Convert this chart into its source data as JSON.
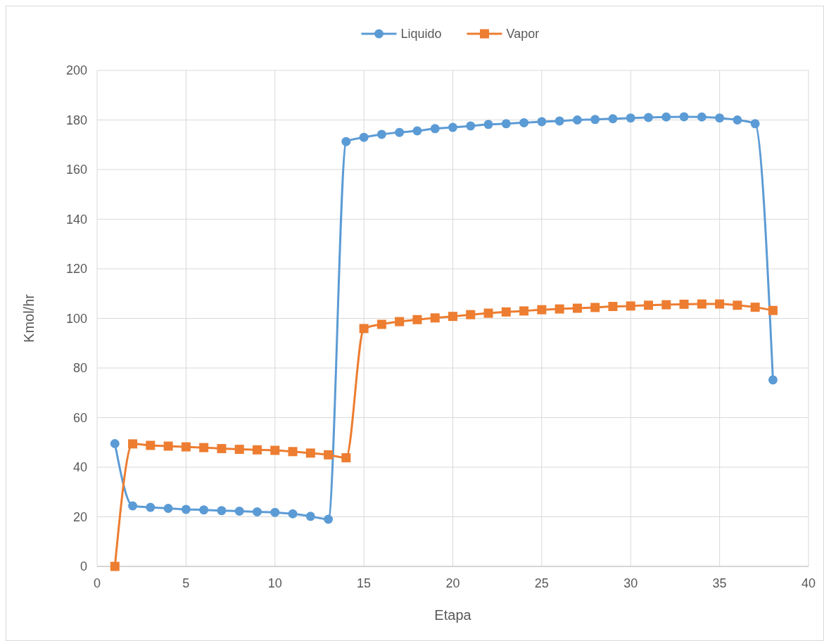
{
  "chart_data": {
    "type": "line",
    "xlabel": "Etapa",
    "ylabel": "Kmol/hr",
    "x": [
      1,
      2,
      3,
      4,
      5,
      6,
      7,
      8,
      9,
      10,
      11,
      12,
      13,
      14,
      15,
      16,
      17,
      18,
      19,
      20,
      21,
      22,
      23,
      24,
      25,
      26,
      27,
      28,
      29,
      30,
      31,
      32,
      33,
      34,
      35,
      36,
      37,
      38
    ],
    "series": [
      {
        "name": "Liquido",
        "color": "#5b9bd5",
        "marker": "circle",
        "values": [
          49.5,
          24.4,
          23.8,
          23.4,
          23.0,
          22.8,
          22.5,
          22.3,
          22.0,
          21.8,
          21.2,
          20.2,
          19.0,
          171.3,
          173.0,
          174.2,
          175.0,
          175.6,
          176.5,
          177.0,
          177.6,
          178.2,
          178.5,
          178.9,
          179.3,
          179.6,
          180.0,
          180.2,
          180.5,
          180.8,
          181.0,
          181.2,
          181.3,
          181.2,
          180.8,
          180.0,
          178.5,
          75.2
        ]
      },
      {
        "name": "Vapor",
        "color": "#ed7d31",
        "marker": "square",
        "values": [
          0,
          49.4,
          48.8,
          48.5,
          48.2,
          47.9,
          47.5,
          47.2,
          47.0,
          46.8,
          46.3,
          45.7,
          45.0,
          43.8,
          95.9,
          97.6,
          98.7,
          99.5,
          100.2,
          100.8,
          101.5,
          102.1,
          102.6,
          103.0,
          103.5,
          103.8,
          104.1,
          104.4,
          104.8,
          105.0,
          105.3,
          105.5,
          105.7,
          105.8,
          105.8,
          105.3,
          104.5,
          103.2
        ]
      }
    ],
    "xlim": [
      0,
      40
    ],
    "xticks": [
      0,
      5,
      10,
      15,
      20,
      25,
      30,
      35,
      40
    ],
    "ylim": [
      0,
      200
    ],
    "yticks": [
      0,
      20,
      40,
      60,
      80,
      100,
      120,
      140,
      160,
      180,
      200
    ],
    "grid": true,
    "legend": "top"
  }
}
